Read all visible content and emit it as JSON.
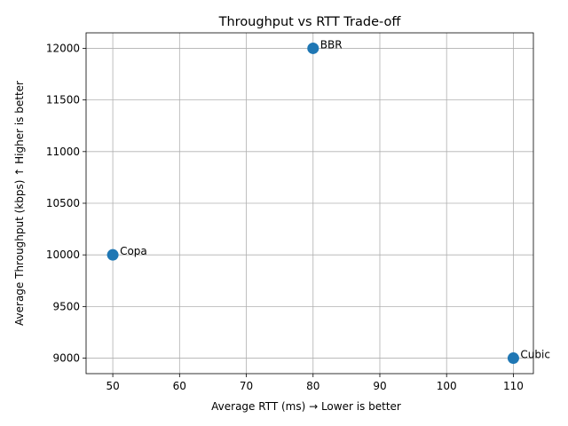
{
  "chart_data": {
    "type": "scatter",
    "title": "Throughput vs RTT Trade-off",
    "xlabel": "Average RTT (ms) → Lower is better",
    "ylabel": "Average Throughput (kbps) ↑ Higher is better",
    "xlim": [
      46,
      113
    ],
    "ylim": [
      8850,
      12150
    ],
    "x_ticks": [
      50,
      60,
      70,
      80,
      90,
      100,
      110
    ],
    "y_ticks": [
      9000,
      9500,
      10000,
      10500,
      11000,
      11500,
      12000
    ],
    "grid": true,
    "marker_color": "#1f77b4",
    "points": [
      {
        "label": "Copa",
        "x": 50,
        "y": 10000
      },
      {
        "label": "BBR",
        "x": 80,
        "y": 12000
      },
      {
        "label": "Cubic",
        "x": 110,
        "y": 9000
      }
    ]
  }
}
